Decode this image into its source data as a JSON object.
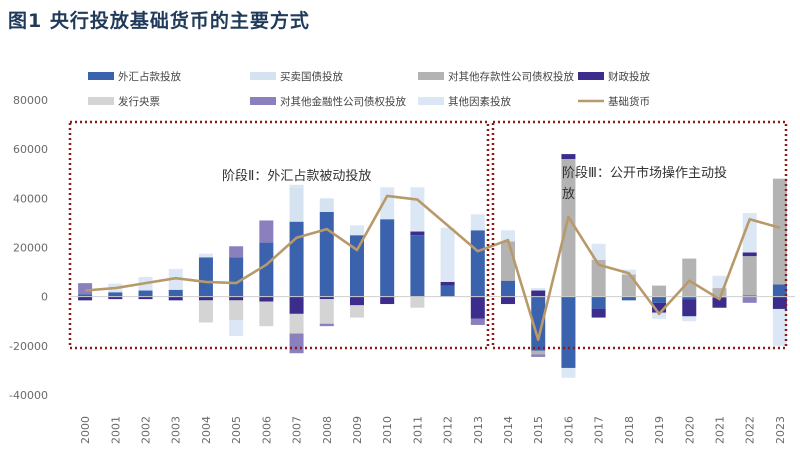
{
  "figure_title": "图1  央行投放基础货币的主要方式",
  "colors": {
    "fx": "#3a62ad",
    "bond_trade": "#d5e3f1",
    "other_deposit": "#b3b3b3",
    "fiscal": "#3c2d8c",
    "cb_bills": "#d4d4d4",
    "other_fin": "#8b7fbd",
    "other_factors": "#dbe7f4",
    "base_money": "#b89a6a",
    "box": "#8b1a1a"
  },
  "chart_data": {
    "type": "bar",
    "stacked": true,
    "title": "",
    "xlabel": "",
    "ylabel": "",
    "ylim": [
      -40000,
      80000
    ],
    "yticks": [
      -40000,
      -20000,
      0,
      20000,
      40000,
      60000,
      80000
    ],
    "categories": [
      "2000",
      "2001",
      "2002",
      "2003",
      "2004",
      "2005",
      "2006",
      "2007",
      "2008",
      "2009",
      "2010",
      "2011",
      "2012",
      "2013",
      "2014",
      "2015",
      "2016",
      "2017",
      "2018",
      "2019",
      "2020",
      "2021",
      "2022",
      "2023"
    ],
    "legend_position": "top",
    "series": [
      {
        "name": "外汇占款投放",
        "key": "fx",
        "kind": "bar",
        "values": [
          1000,
          1800,
          2500,
          2800,
          16000,
          16000,
          22000,
          30500,
          34500,
          25000,
          31500,
          25000,
          4500,
          27000,
          6500,
          -22000,
          -29000,
          -5000,
          -1500,
          -2500,
          -1000,
          -500,
          500,
          5000
        ]
      },
      {
        "name": "买卖国债投放",
        "key": "bond_trade",
        "kind": "bar",
        "values": [
          0,
          0,
          0,
          0,
          0,
          0,
          0,
          14000,
          5500,
          0,
          0,
          0,
          0,
          0,
          0,
          0,
          0,
          0,
          0,
          0,
          0,
          0,
          0,
          0
        ]
      },
      {
        "name": "对其他存款性公司债权投放",
        "key": "other_deposit",
        "kind": "bar",
        "values": [
          0,
          0,
          0,
          0,
          0,
          0,
          0,
          0,
          0,
          0,
          0,
          0,
          0,
          0,
          16000,
          -1500,
          56000,
          15000,
          9000,
          4500,
          15500,
          3500,
          16000,
          43000
        ]
      },
      {
        "name": "财政投放",
        "key": "fiscal",
        "kind": "bar",
        "values": [
          -1500,
          -1000,
          -1000,
          -1500,
          -1500,
          -1500,
          -2000,
          -7000,
          -1000,
          -3500,
          -3000,
          1500,
          1500,
          -9000,
          -3000,
          2500,
          2000,
          -3500,
          0,
          -4000,
          -7000,
          -4000,
          1500,
          -5000
        ]
      },
      {
        "name": "发行央票",
        "key": "cb_bills",
        "kind": "bar",
        "values": [
          0,
          0,
          0,
          0,
          -9000,
          -8000,
          -10000,
          -8000,
          -10000,
          -5000,
          0,
          -4500,
          0,
          0,
          0,
          0,
          0,
          0,
          0,
          0,
          0,
          0,
          0,
          0
        ]
      },
      {
        "name": "对其他金融性公司债权投放",
        "key": "other_fin",
        "kind": "bar",
        "values": [
          4500,
          0,
          0,
          0,
          0,
          4500,
          9000,
          -8000,
          -1000,
          0,
          0,
          0,
          0,
          -2500,
          0,
          -1000,
          0,
          0,
          0,
          0,
          0,
          0,
          -2500,
          0
        ]
      },
      {
        "name": "其他因素投放",
        "key": "other_factors",
        "kind": "bar",
        "values": [
          0,
          3500,
          5500,
          8500,
          1500,
          -6500,
          0,
          1000,
          0,
          4000,
          13000,
          18000,
          22000,
          6500,
          4500,
          1000,
          -4000,
          6500,
          2000,
          -2500,
          -2000,
          5000,
          16000,
          -15000
        ]
      },
      {
        "name": "基础货币",
        "key": "base_money",
        "kind": "line",
        "values": [
          2500,
          3500,
          5500,
          7500,
          6000,
          5500,
          13000,
          24000,
          27500,
          19000,
          41000,
          39500,
          29000,
          18500,
          23000,
          -17500,
          32500,
          13000,
          9500,
          -7000,
          6500,
          -1000,
          31500,
          28000
        ]
      }
    ],
    "annotations": [
      {
        "label": "阶段Ⅱ：外汇占款被动投放",
        "span": [
          "2000",
          "2013"
        ],
        "lines": [
          "阶段Ⅱ：外汇占款被动投放"
        ]
      },
      {
        "label": "阶段Ⅲ：公开市场操作主动投放",
        "span": [
          "2014",
          "2023"
        ],
        "lines": [
          "阶段Ⅲ：公开市场操作主动投",
          "放"
        ]
      }
    ]
  }
}
